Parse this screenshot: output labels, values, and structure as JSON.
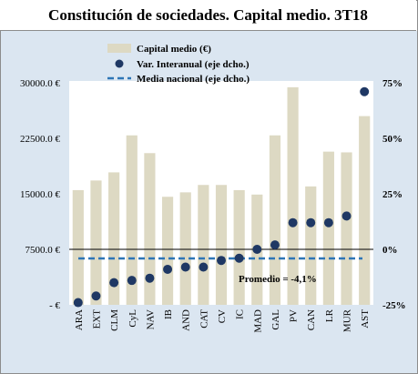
{
  "chart_data": {
    "type": "bar",
    "title": "Constitución de sociedades. Capital medio. 3T18",
    "categories": [
      "ARA",
      "EXT",
      "CLM",
      "CyL",
      "NAV",
      "IB",
      "AND",
      "CAT",
      "CV",
      "IC",
      "MAD",
      "GAL",
      "PV",
      "CAN",
      "LR",
      "MUR",
      "AST"
    ],
    "left_axis": {
      "ticks": [
        "-  €",
        "7500.0  €",
        "15000.0  €",
        "22500.0  €",
        "30000.0  €"
      ],
      "ylim": [
        0,
        30000
      ]
    },
    "right_axis": {
      "ticks": [
        "-25%",
        "0%",
        "25%",
        "50%",
        "75%"
      ],
      "ylim": [
        -25,
        75
      ]
    },
    "series": [
      {
        "name": "Capital medio (€)",
        "kind": "bar",
        "axis": "left",
        "color": "#ddd9c3",
        "values": [
          15500,
          16800,
          17900,
          22900,
          20500,
          14600,
          15200,
          16200,
          16200,
          15500,
          14900,
          22900,
          29400,
          16000,
          20700,
          20600,
          25500
        ]
      },
      {
        "name": "Var. Interanual (eje dcho.)",
        "kind": "scatter",
        "axis": "right",
        "color": "#1f3864",
        "values": [
          -24,
          -21,
          -15,
          -14,
          -13,
          -9,
          -8,
          -8,
          -5,
          -4,
          0,
          2,
          12,
          12,
          12,
          15,
          71
        ]
      },
      {
        "name": "Media nacional (eje dcho.)",
        "kind": "line",
        "axis": "right",
        "color": "#2e75b6",
        "value": -4.1
      }
    ],
    "annotation": "Promedio = -4,1%"
  }
}
